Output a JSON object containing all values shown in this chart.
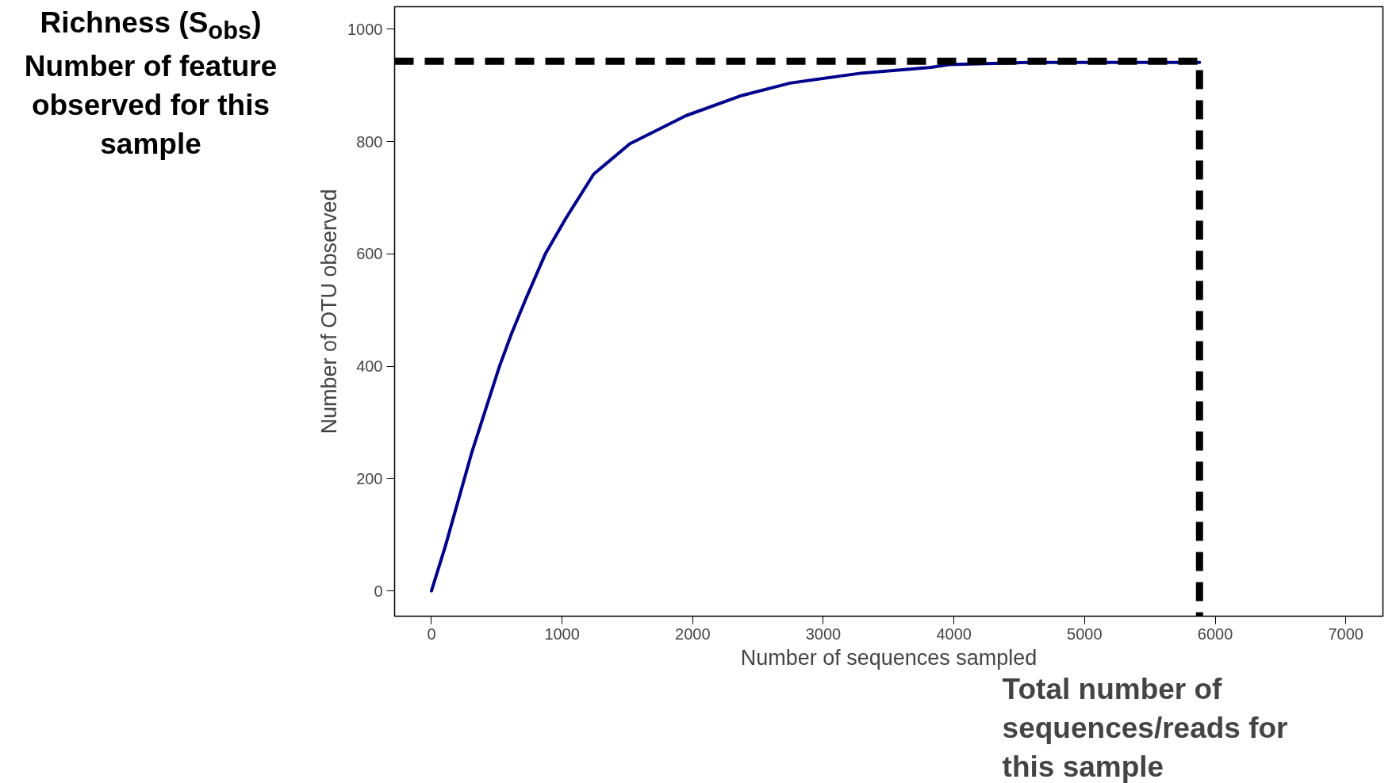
{
  "chart_data": {
    "type": "line",
    "xlabel": "Number of sequences sampled",
    "ylabel": "Number of OTU observed",
    "annotations": [
      "Richness (S$_{obs}$)",
      "Number of feature observed for this sample",
      "Total number of sequences/reads for this sample"
    ],
    "series": [
      {
        "color": "#00008b",
        "line_style": "solid",
        "x": [
          0,
          107,
          307,
          521,
          613,
          721,
          874,
          1028,
          1242,
          1518,
          1948,
          2377,
          2745,
          3298,
          3825,
          3963,
          4577,
          5190,
          5880
        ],
        "values": [
          0,
          80,
          245,
          400,
          458,
          519,
          601,
          663,
          742,
          796,
          846,
          882,
          904,
          922,
          932,
          937,
          941,
          941,
          941
        ]
      },
      {
        "color": "#000000",
        "line_style": "dashed",
        "x": [
          -282,
          5880,
          5880
        ],
        "values": [
          943,
          943,
          -45
        ]
      }
    ],
    "xlim": [
      -282,
      7284
    ],
    "ylim": [
      -45,
      1040
    ],
    "xticks": [
      0,
      1000,
      2000,
      3000,
      4000,
      5000,
      6000,
      7000
    ],
    "yticks": [
      0,
      200,
      400,
      600,
      800,
      1000
    ],
    "grid": false,
    "marker": "none"
  }
}
